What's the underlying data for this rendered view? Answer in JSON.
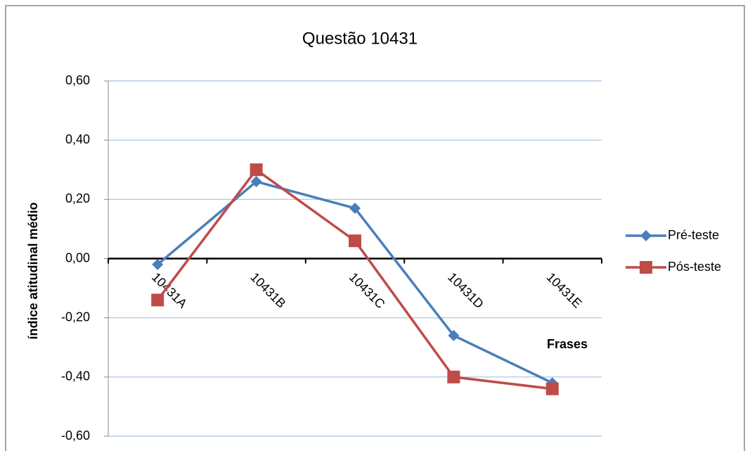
{
  "chart_data": {
    "type": "line",
    "title": "Questão 10431",
    "x_label": "Frases",
    "y_label": "índice atitudinal médio",
    "categories": [
      "10431A",
      "10431B",
      "10431C",
      "10431D",
      "10431E"
    ],
    "series": [
      {
        "name": "Pré-teste",
        "color": "#4a7ebb",
        "marker": "diamond",
        "values": [
          -0.02,
          0.26,
          0.17,
          -0.26,
          -0.42
        ]
      },
      {
        "name": "Pós-teste",
        "color": "#be4b48",
        "marker": "square",
        "values": [
          -0.14,
          0.3,
          0.06,
          -0.4,
          -0.44
        ]
      }
    ],
    "ylim": [
      -0.6,
      0.6
    ],
    "yticks": [
      {
        "value": 0.6,
        "label": "0,60"
      },
      {
        "value": 0.4,
        "label": "0,40"
      },
      {
        "value": 0.2,
        "label": "0,20"
      },
      {
        "value": 0,
        "label": "0,00"
      },
      {
        "value": -0.2,
        "label": "-0,20"
      },
      {
        "value": -0.4,
        "label": "-0,40"
      },
      {
        "value": -0.6,
        "label": "-0,60"
      }
    ],
    "grid": true,
    "legend": "right"
  }
}
